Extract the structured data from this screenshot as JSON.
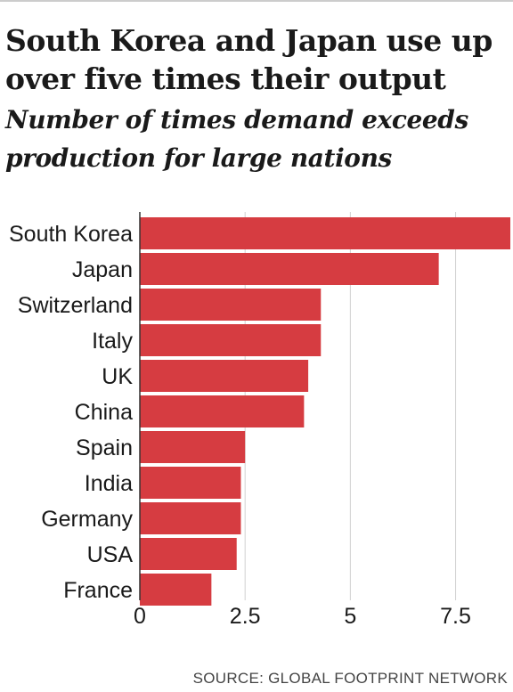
{
  "title": "South Korea and Japan use up over five times their output",
  "subtitle": "Number of times demand exceeds production for large nations",
  "source": "SOURCE: GLOBAL FOOTPRINT NETWORK",
  "colors": {
    "bar": "#d63c41",
    "grid": "#d0d0d0",
    "axis": "#333333",
    "text": "#1a1a1a"
  },
  "chart_data": {
    "type": "bar",
    "orientation": "horizontal",
    "categories": [
      "South Korea",
      "Japan",
      "Switzerland",
      "Italy",
      "UK",
      "China",
      "Spain",
      "India",
      "Germany",
      "USA",
      "France"
    ],
    "values": [
      8.8,
      7.1,
      4.3,
      4.3,
      4.0,
      3.9,
      2.5,
      2.4,
      2.4,
      2.3,
      1.7
    ],
    "xlim": [
      0,
      8.8
    ],
    "ticks": [
      0,
      2.5,
      5,
      7.5
    ],
    "tick_labels": [
      "0",
      "2.5",
      "5",
      "7.5"
    ],
    "grid": true
  }
}
